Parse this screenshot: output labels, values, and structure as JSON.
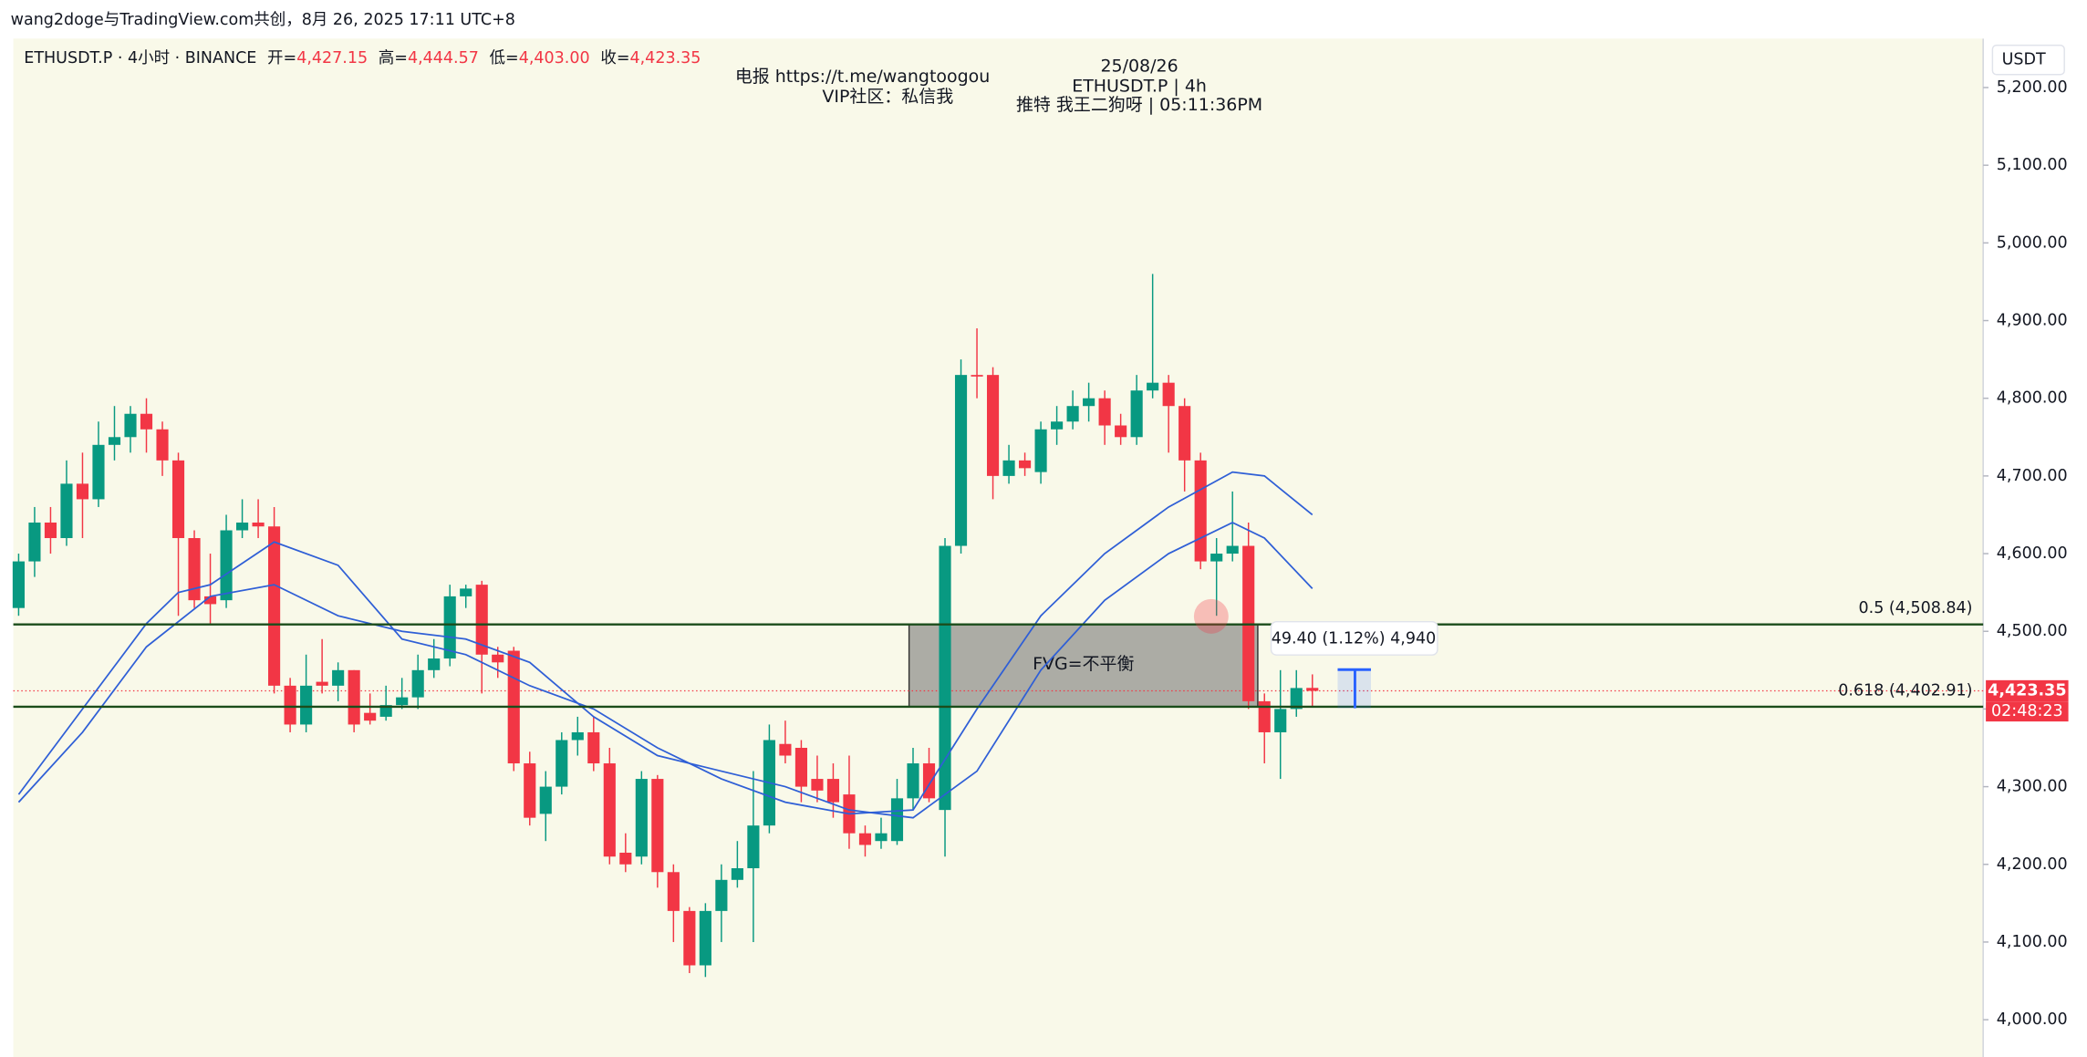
{
  "page_header": "wang2doge与TradingView.com共创，8月 26, 2025 17:11 UTC+8",
  "legend": {
    "symbol": "ETHUSDT.P · 4小时 · BINANCE",
    "ohlc": [
      {
        "label": "开=",
        "value": "4,427.15"
      },
      {
        "label": "高=",
        "value": "4,444.57"
      },
      {
        "label": "低=",
        "value": "4,403.00"
      },
      {
        "label": "收=",
        "value": "4,423.35"
      }
    ]
  },
  "annotations": {
    "telegram": "电报 https://t.me/wangtoogou",
    "vip": "VIP社区：私信我",
    "date": "25/08/26",
    "pair": "ETHUSDT.P | 4h",
    "twitter": "推特 我王二狗呀 | 05:11:36PM",
    "measure": "49.40 (1.12%) 4,940"
  },
  "chart_data": {
    "type": "candlestick",
    "currency": "USDT",
    "up_color": "#089981",
    "down_color": "#f23645",
    "open": [
      4530,
      4590,
      4640,
      4620,
      4690,
      4670,
      4740,
      4750,
      4780,
      4760,
      4720,
      4620,
      4545,
      4540,
      4630,
      4640,
      4635,
      4430,
      4380,
      4435,
      4430,
      4450,
      4395,
      4390,
      4405,
      4415,
      4450,
      4465,
      4545,
      4560,
      4470,
      4475,
      4330,
      4265,
      4300,
      4360,
      4370,
      4330,
      4215,
      4210,
      4310,
      4190,
      4140,
      4070,
      4140,
      4180,
      4195,
      4250,
      4355,
      4350,
      4310,
      4310,
      4290,
      4240,
      4230,
      4230,
      4285,
      4330,
      4270,
      4610,
      4830,
      4830,
      4700,
      4720,
      4705,
      4760,
      4770,
      4790,
      4800,
      4765,
      4750,
      4810,
      4820,
      4790,
      4720,
      4590,
      4600,
      4610,
      4410,
      4370,
      4400,
      4427.15
    ],
    "high": [
      4600,
      4660,
      4660,
      4720,
      4730,
      4770,
      4790,
      4790,
      4800,
      4770,
      4730,
      4630,
      4600,
      4650,
      4670,
      4670,
      4660,
      4440,
      4470,
      4490,
      4460,
      4450,
      4420,
      4430,
      4440,
      4470,
      4490,
      4560,
      4560,
      4565,
      4480,
      4480,
      4345,
      4320,
      4370,
      4390,
      4390,
      4350,
      4240,
      4320,
      4315,
      4200,
      4145,
      4150,
      4200,
      4230,
      4320,
      4380,
      4385,
      4360,
      4340,
      4330,
      4340,
      4250,
      4260,
      4310,
      4350,
      4350,
      4620,
      4850,
      4890,
      4840,
      4740,
      4730,
      4770,
      4790,
      4810,
      4820,
      4810,
      4780,
      4830,
      4960,
      4830,
      4800,
      4730,
      4620,
      4680,
      4640,
      4420,
      4450,
      4450,
      4444.57
    ],
    "low": [
      4520,
      4570,
      4600,
      4610,
      4620,
      4660,
      4720,
      4730,
      4730,
      4700,
      4520,
      4530,
      4510,
      4530,
      4620,
      4620,
      4420,
      4370,
      4370,
      4420,
      4410,
      4370,
      4380,
      4385,
      4400,
      4400,
      4440,
      4455,
      4530,
      4420,
      4440,
      4320,
      4250,
      4230,
      4290,
      4340,
      4320,
      4200,
      4190,
      4200,
      4170,
      4100,
      4060,
      4055,
      4100,
      4170,
      4100,
      4240,
      4330,
      4280,
      4280,
      4260,
      4220,
      4210,
      4220,
      4225,
      4270,
      4280,
      4210,
      4600,
      4800,
      4670,
      4690,
      4700,
      4690,
      4740,
      4760,
      4770,
      4740,
      4740,
      4740,
      4800,
      4730,
      4680,
      4580,
      4520,
      4590,
      4400,
      4330,
      4310,
      4390,
      4403.0
    ],
    "close": [
      4590,
      4640,
      4620,
      4690,
      4670,
      4740,
      4750,
      4780,
      4760,
      4720,
      4620,
      4540,
      4535,
      4630,
      4640,
      4635,
      4430,
      4380,
      4430,
      4430,
      4450,
      4380,
      4385,
      4405,
      4415,
      4450,
      4465,
      4545,
      4555,
      4470,
      4460,
      4330,
      4260,
      4300,
      4360,
      4370,
      4330,
      4210,
      4200,
      4310,
      4190,
      4140,
      4070,
      4140,
      4180,
      4195,
      4250,
      4360,
      4340,
      4300,
      4295,
      4280,
      4240,
      4225,
      4240,
      4285,
      4330,
      4285,
      4610,
      4830,
      4828,
      4700,
      4720,
      4710,
      4760,
      4770,
      4790,
      4800,
      4765,
      4750,
      4810,
      4820,
      4790,
      4720,
      4590,
      4600,
      4610,
      4410,
      4370,
      4400,
      4427,
      4423.35
    ],
    "lines": [
      {
        "color": "#2f5fd6",
        "x": [
          0,
          4,
          8,
          10,
          12,
          16,
          20,
          24,
          28,
          32,
          36,
          40,
          44,
          48,
          52,
          56,
          60,
          64,
          68,
          72,
          76,
          78,
          81
        ],
        "values": [
          4290,
          4400,
          4510,
          4550,
          4560,
          4615,
          4585,
          4490,
          4470,
          4430,
          4400,
          4350,
          4310,
          4280,
          4265,
          4270,
          4400,
          4520,
          4600,
          4660,
          4705,
          4700,
          4650
        ]
      },
      {
        "color": "#2f5fd6",
        "x": [
          0,
          4,
          8,
          12,
          16,
          20,
          24,
          28,
          32,
          36,
          40,
          44,
          48,
          52,
          56,
          60,
          64,
          68,
          72,
          76,
          78,
          81
        ],
        "values": [
          4280,
          4370,
          4480,
          4545,
          4560,
          4520,
          4500,
          4490,
          4460,
          4390,
          4340,
          4320,
          4300,
          4270,
          4260,
          4320,
          4450,
          4540,
          4600,
          4640,
          4620,
          4555
        ]
      }
    ],
    "levels": [
      {
        "value": 4508.84,
        "label": "0.5 (4,508.84)"
      },
      {
        "value": 4402.91,
        "label": "0.618 (4,402.91)"
      }
    ],
    "fvg_label": "FVG=不平衡",
    "last_price": {
      "value": 4423.35,
      "label": "4,423.35"
    },
    "countdown": "02:48:23",
    "ylim": [
      3952,
      5263
    ],
    "yticks": [
      {
        "value": 4000,
        "label": "4,000.00"
      },
      {
        "value": 4100,
        "label": "4,100.00"
      },
      {
        "value": 4200,
        "label": "4,200.00"
      },
      {
        "value": 4300,
        "label": "4,300.00"
      },
      {
        "value": 4400,
        "label": "4,400.00"
      },
      {
        "value": 4500,
        "label": "4,500.00"
      },
      {
        "value": 4600,
        "label": "4,600.00"
      },
      {
        "value": 4700,
        "label": "4,700.00"
      },
      {
        "value": 4800,
        "label": "4,800.00"
      },
      {
        "value": 4900,
        "label": "4,900.00"
      },
      {
        "value": 5000,
        "label": "5,000.00"
      },
      {
        "value": 5100,
        "label": "5,100.00"
      },
      {
        "value": 5200,
        "label": "5,200.00"
      }
    ]
  }
}
